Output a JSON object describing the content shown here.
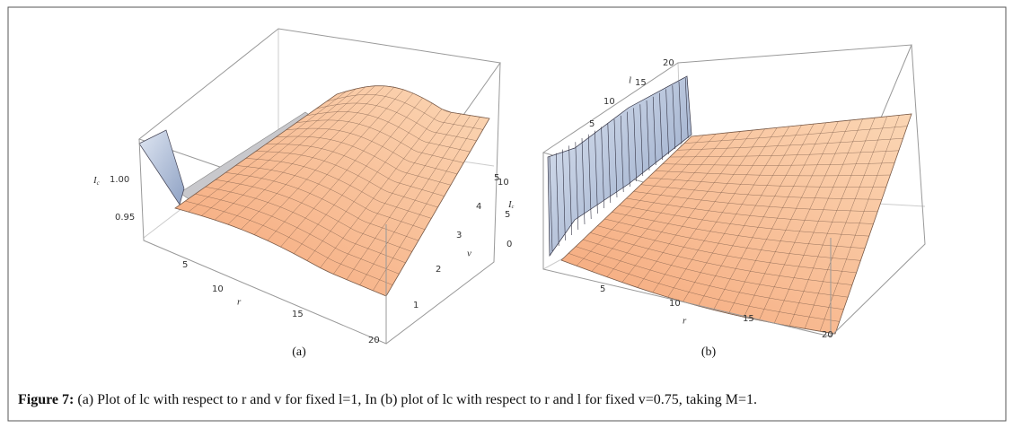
{
  "figure": {
    "panels": [
      {
        "label": "(a)",
        "z_axis": {
          "name": "I",
          "sub": "c",
          "ticks": [
            "1.00",
            "0.95"
          ]
        },
        "r_axis": {
          "name": "r",
          "ticks": [
            "5",
            "10",
            "15",
            "20"
          ]
        },
        "v_axis": {
          "name": "v",
          "ticks": [
            "1",
            "2",
            "3",
            "4",
            "5"
          ]
        }
      },
      {
        "label": "(b)",
        "l_axis": {
          "name": "l",
          "ticks": [
            "20",
            "15",
            "10",
            "5"
          ]
        },
        "z_axis": {
          "name": "I",
          "sub": "c",
          "ticks": [
            "10",
            "5",
            "0"
          ]
        },
        "r_axis": {
          "name": "r",
          "ticks": [
            "5",
            "10",
            "15",
            "20"
          ]
        }
      }
    ],
    "caption": {
      "prefix": "Figure 7:",
      "text": "(a) Plot of lc with respect to r and v for fixed l=1, In (b)  plot of lc with respect to r and l for fixed v=0.75, taking M=1."
    }
  }
}
